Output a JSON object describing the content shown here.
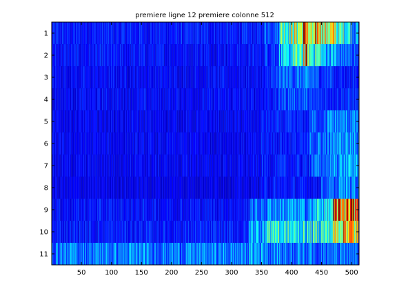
{
  "chart_data": {
    "type": "heatmap",
    "title": "premiere ligne 12 premiere colonne 512",
    "xlabel": "",
    "ylabel": "",
    "x_range": [
      1,
      512
    ],
    "y_range": [
      1,
      11
    ],
    "xticks": [
      50,
      100,
      150,
      200,
      250,
      300,
      350,
      400,
      450,
      500
    ],
    "yticks": [
      1,
      2,
      3,
      4,
      5,
      6,
      7,
      8,
      9,
      10,
      11
    ],
    "colormap": "jet",
    "grid": false,
    "rows": [
      {
        "label": 1,
        "base": 0.06,
        "bands": [
          [
            1,
            355,
            0.14
          ],
          [
            355,
            380,
            0.22
          ],
          [
            380,
            400,
            0.45
          ],
          [
            400,
            420,
            0.55
          ],
          [
            420,
            428,
            0.85
          ],
          [
            428,
            440,
            0.5
          ],
          [
            440,
            455,
            0.72
          ],
          [
            455,
            475,
            0.58
          ],
          [
            475,
            500,
            0.4
          ],
          [
            500,
            512,
            0.28
          ]
        ]
      },
      {
        "label": 2,
        "base": 0.06,
        "bands": [
          [
            1,
            355,
            0.13
          ],
          [
            355,
            380,
            0.18
          ],
          [
            380,
            400,
            0.3
          ],
          [
            400,
            420,
            0.4
          ],
          [
            420,
            428,
            0.7
          ],
          [
            428,
            450,
            0.42
          ],
          [
            450,
            475,
            0.3
          ],
          [
            475,
            495,
            0.22
          ],
          [
            495,
            512,
            0.2
          ]
        ]
      },
      {
        "label": 3,
        "base": 0.06,
        "bands": [
          [
            1,
            360,
            0.12
          ],
          [
            360,
            380,
            0.16
          ],
          [
            380,
            440,
            0.22
          ],
          [
            440,
            470,
            0.18
          ],
          [
            470,
            512,
            0.14
          ]
        ]
      },
      {
        "label": 4,
        "base": 0.06,
        "bands": [
          [
            1,
            350,
            0.12
          ],
          [
            350,
            380,
            0.14
          ],
          [
            380,
            430,
            0.2
          ],
          [
            430,
            512,
            0.16
          ]
        ]
      },
      {
        "label": 5,
        "base": 0.05,
        "bands": [
          [
            1,
            350,
            0.11
          ],
          [
            350,
            430,
            0.14
          ],
          [
            430,
            460,
            0.2
          ],
          [
            460,
            512,
            0.24
          ]
        ]
      },
      {
        "label": 6,
        "base": 0.06,
        "bands": [
          [
            1,
            350,
            0.11
          ],
          [
            350,
            430,
            0.14
          ],
          [
            430,
            470,
            0.22
          ],
          [
            470,
            512,
            0.28
          ]
        ]
      },
      {
        "label": 7,
        "base": 0.06,
        "bands": [
          [
            1,
            350,
            0.11
          ],
          [
            350,
            430,
            0.14
          ],
          [
            430,
            470,
            0.22
          ],
          [
            470,
            512,
            0.28
          ]
        ]
      },
      {
        "label": 8,
        "base": 0.05,
        "bands": [
          [
            1,
            350,
            0.1
          ],
          [
            350,
            450,
            0.13
          ],
          [
            450,
            480,
            0.2
          ],
          [
            480,
            512,
            0.26
          ]
        ]
      },
      {
        "label": 9,
        "base": 0.07,
        "bands": [
          [
            1,
            330,
            0.13
          ],
          [
            330,
            360,
            0.22
          ],
          [
            360,
            440,
            0.26
          ],
          [
            440,
            470,
            0.35
          ],
          [
            470,
            490,
            0.78
          ],
          [
            490,
            505,
            0.88
          ],
          [
            505,
            512,
            0.72
          ]
        ]
      },
      {
        "label": 10,
        "base": 0.08,
        "bands": [
          [
            1,
            330,
            0.14
          ],
          [
            330,
            360,
            0.3
          ],
          [
            360,
            380,
            0.42
          ],
          [
            380,
            440,
            0.36
          ],
          [
            440,
            470,
            0.4
          ],
          [
            470,
            485,
            0.6
          ],
          [
            485,
            500,
            0.72
          ],
          [
            500,
            512,
            0.62
          ]
        ]
      },
      {
        "label": 11,
        "base": 0.12,
        "bands": [
          [
            1,
            330,
            0.24
          ],
          [
            330,
            360,
            0.28
          ],
          [
            360,
            440,
            0.24
          ],
          [
            440,
            512,
            0.22
          ]
        ]
      }
    ]
  }
}
